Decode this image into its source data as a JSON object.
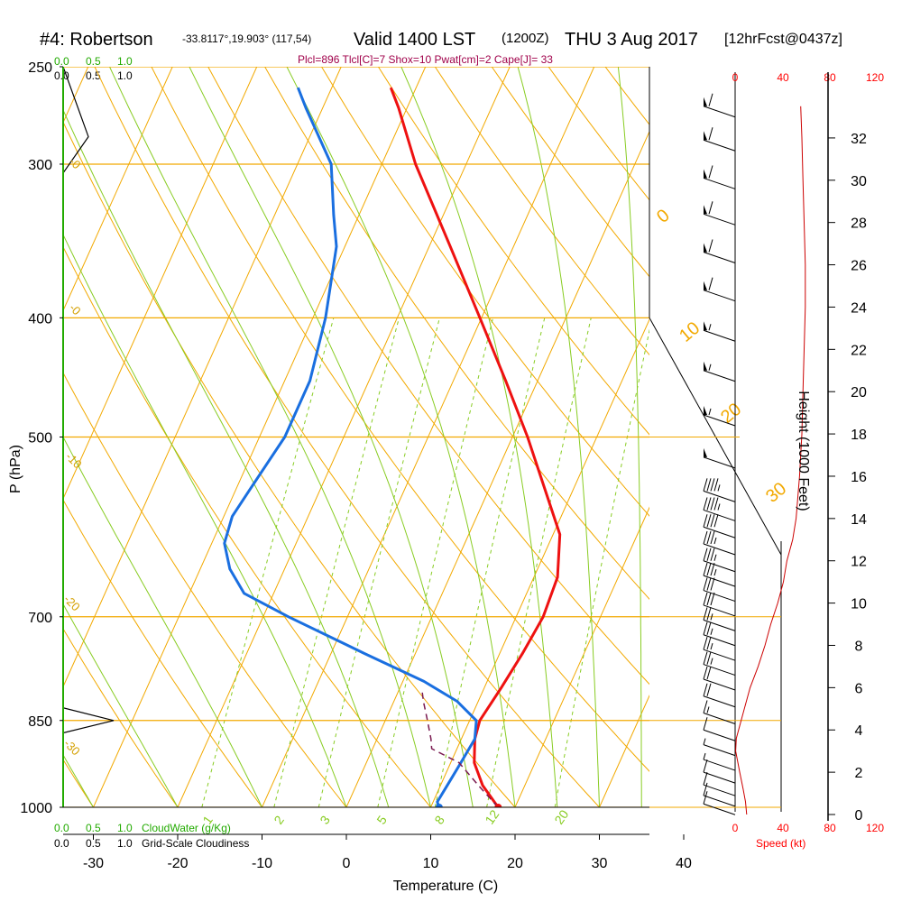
{
  "header": {
    "title_main": "#4: Robertson",
    "title_coords": "-33.8117°,19.903° (117,54)",
    "title_valid": "Valid 1400 LST",
    "title_z": "(1200Z)",
    "title_date": "THU 3 Aug 2017",
    "title_fcst": "[12hrFcst@0437z]",
    "indices": "Plcl=896 Tlcl[C]=7 Shox=10 Pwat[cm]=2 Cape[J]= 33"
  },
  "labels": {
    "ylabel": "P (hPa)",
    "xlabel": "Temperature (C)",
    "height_label": "Height (1000 Feet)",
    "speed_label": "Speed (kt)",
    "cloudwater_label": "CloudWater (g/Kg)",
    "cloudiness_label": "Grid-Scale Cloudiness"
  },
  "cloud_scale": {
    "green_ticks": [
      "0.0",
      "0.5",
      "1.0"
    ],
    "black_ticks": [
      "0.0",
      "0.5",
      "1.0"
    ]
  },
  "chart_data": {
    "type": "line",
    "pressure_ticks": [
      250,
      300,
      400,
      500,
      700,
      850,
      1000
    ],
    "temperature_ticks": [
      -30,
      -20,
      -10,
      0,
      10,
      20,
      30,
      40
    ],
    "height_ticks_kft": [
      0,
      2,
      4,
      6,
      8,
      10,
      12,
      14,
      16,
      18,
      20,
      22,
      24,
      26,
      28,
      30,
      32
    ],
    "speed_ticks_kt": [
      "0",
      "40",
      "80",
      "120"
    ],
    "dry_adiabat_labels": [
      "0",
      "10",
      "20",
      "30"
    ],
    "saturated_adiabat_labels_left": [
      "-0",
      "-0",
      "-10",
      "-20",
      "-30"
    ],
    "mixing_ratio_labels": [
      "1",
      "2",
      "3",
      "5",
      "8",
      "12",
      "20"
    ],
    "series": [
      {
        "name": "temperature",
        "color": "#ee1111",
        "points": [
          [
            1000,
            18
          ],
          [
            960,
            15
          ],
          [
            920,
            12.8
          ],
          [
            880,
            11.6
          ],
          [
            850,
            11.2
          ],
          [
            800,
            12
          ],
          [
            750,
            12.7
          ],
          [
            700,
            13.2
          ],
          [
            650,
            12.8
          ],
          [
            600,
            10.8
          ],
          [
            550,
            6.5
          ],
          [
            500,
            1.8
          ],
          [
            450,
            -3.8
          ],
          [
            400,
            -10.2
          ],
          [
            350,
            -17.5
          ],
          [
            300,
            -26
          ],
          [
            270,
            -31
          ],
          [
            260,
            -33
          ]
        ]
      },
      {
        "name": "dewpoint",
        "color": "#1a6fe0",
        "points": [
          [
            1000,
            11
          ],
          [
            990,
            10.5
          ],
          [
            960,
            10.8
          ],
          [
            920,
            11.2
          ],
          [
            880,
            11.6
          ],
          [
            850,
            10.8
          ],
          [
            820,
            7.5
          ],
          [
            790,
            2.5
          ],
          [
            750,
            -6
          ],
          [
            700,
            -17
          ],
          [
            670,
            -23.5
          ],
          [
            640,
            -26.5
          ],
          [
            610,
            -28.5
          ],
          [
            580,
            -29
          ],
          [
            550,
            -28.3
          ],
          [
            500,
            -27
          ],
          [
            450,
            -27
          ],
          [
            400,
            -28.5
          ],
          [
            350,
            -31
          ],
          [
            330,
            -33
          ],
          [
            300,
            -36
          ],
          [
            270,
            -42
          ],
          [
            260,
            -44
          ]
        ]
      },
      {
        "name": "parcel",
        "color": "#7a1a50",
        "points": [
          [
            1000,
            18
          ],
          [
            960,
            14.5
          ],
          [
            920,
            11
          ],
          [
            896,
            7
          ],
          [
            880,
            6.4
          ],
          [
            850,
            5
          ],
          [
            820,
            3.5
          ],
          [
            800,
            2.6
          ]
        ]
      },
      {
        "name": "wind_speed",
        "color": "#cc0000",
        "height_speed": [
          [
            0,
            10
          ],
          [
            0.6,
            9
          ],
          [
            1.2,
            7
          ],
          [
            2,
            4
          ],
          [
            3,
            0.5
          ],
          [
            3.6,
            1
          ],
          [
            5,
            8
          ],
          [
            6,
            13
          ],
          [
            7,
            20
          ],
          [
            8,
            26
          ],
          [
            9,
            31
          ],
          [
            10,
            37
          ],
          [
            11,
            42
          ],
          [
            12,
            45
          ],
          [
            13,
            50
          ],
          [
            14,
            53
          ],
          [
            16,
            56
          ],
          [
            18,
            58
          ],
          [
            20,
            59
          ],
          [
            22,
            60
          ],
          [
            24,
            61
          ],
          [
            26,
            61
          ],
          [
            28,
            60
          ],
          [
            30,
            59
          ],
          [
            32,
            58
          ],
          [
            33.5,
            57
          ]
        ]
      }
    ],
    "wind_barbs": [
      {
        "h": 33.5,
        "kt": 60
      },
      {
        "h": 31.9,
        "kt": 60
      },
      {
        "h": 30.1,
        "kt": 60
      },
      {
        "h": 28.4,
        "kt": 60
      },
      {
        "h": 26.6,
        "kt": 60
      },
      {
        "h": 24.8,
        "kt": 60
      },
      {
        "h": 22.9,
        "kt": 58
      },
      {
        "h": 21.0,
        "kt": 57
      },
      {
        "h": 18.9,
        "kt": 55
      },
      {
        "h": 16.9,
        "kt": 52
      },
      {
        "h": 15.3,
        "kt": 45
      },
      {
        "h": 14.4,
        "kt": 45
      },
      {
        "h": 13.6,
        "kt": 40
      },
      {
        "h": 12.8,
        "kt": 38
      },
      {
        "h": 12.0,
        "kt": 35
      },
      {
        "h": 11.3,
        "kt": 35
      },
      {
        "h": 10.6,
        "kt": 30
      },
      {
        "h": 9.9,
        "kt": 30
      },
      {
        "h": 9.2,
        "kt": 25
      },
      {
        "h": 8.5,
        "kt": 25
      },
      {
        "h": 7.8,
        "kt": 25
      },
      {
        "h": 7.1,
        "kt": 25
      },
      {
        "h": 6.4,
        "kt": 20
      },
      {
        "h": 5.6,
        "kt": 20
      },
      {
        "h": 4.8,
        "kt": 15
      },
      {
        "h": 4.0,
        "kt": 10
      },
      {
        "h": 3.3,
        "kt": 5
      },
      {
        "h": 2.6,
        "kt": 5
      },
      {
        "h": 2.0,
        "kt": 10
      },
      {
        "h": 1.4,
        "kt": 10
      },
      {
        "h": 0.9,
        "kt": 10
      },
      {
        "h": 0.5,
        "kt": 10
      }
    ],
    "cloudiness_profile": [
      [
        250,
        0
      ],
      [
        285,
        0.5
      ],
      [
        305,
        0
      ],
      [
        830,
        0
      ],
      [
        850,
        1.0
      ],
      [
        870,
        0
      ]
    ]
  }
}
